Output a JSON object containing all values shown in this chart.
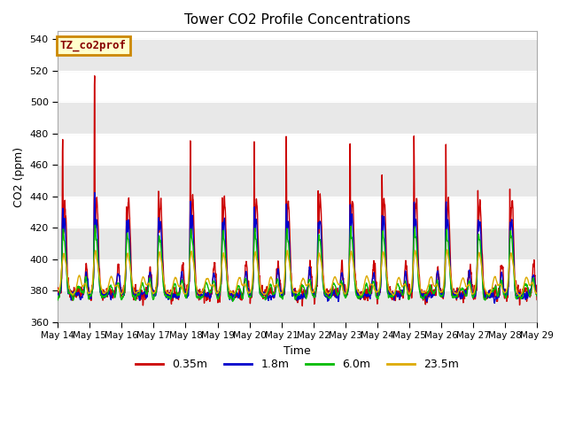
{
  "title": "Tower CO2 Profile Concentrations",
  "xlabel": "Time",
  "ylabel": "CO2 (ppm)",
  "ylim": [
    360,
    545
  ],
  "yticks": [
    360,
    380,
    400,
    420,
    440,
    460,
    480,
    500,
    520,
    540
  ],
  "label_text": "TZ_co2prof",
  "label_bg": "#ffffcc",
  "label_border": "#cc8800",
  "bg_color": "#ffffff",
  "gray_band_color": "#e8e8e8",
  "series": [
    "0.35m",
    "1.8m",
    "6.0m",
    "23.5m"
  ],
  "colors": [
    "#cc0000",
    "#0000cc",
    "#00bb00",
    "#ddaa00"
  ],
  "n_points": 2160,
  "seed": 7
}
